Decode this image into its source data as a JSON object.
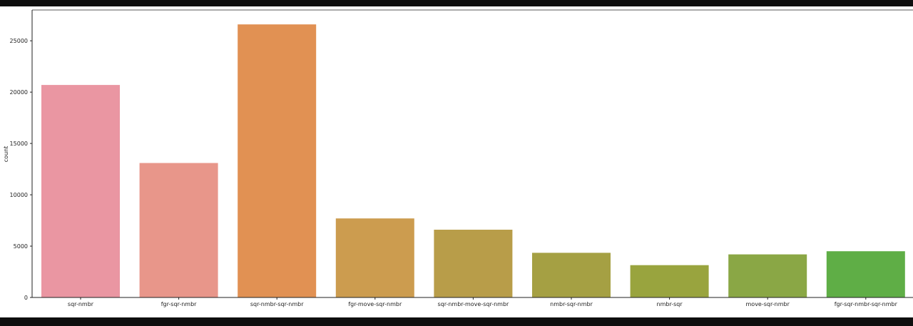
{
  "chart_data": {
    "type": "bar",
    "categories": [
      "sqr-nmbr",
      "fgr-sqr-nmbr",
      "sqr-nmbr-sqr-nmbr",
      "fgr-move-sqr-nmbr",
      "sqr-nmbr-move-sqr-nmbr",
      "nmbr-sqr-nmbr",
      "nmbr-sqr",
      "move-sqr-nmbr",
      "fgr-sqr-nmbr-sqr-nmbr"
    ],
    "values": [
      20700,
      13100,
      26600,
      7700,
      6600,
      4350,
      3150,
      4200,
      4500
    ],
    "colors": [
      "#ea96a2",
      "#e8968a",
      "#e19153",
      "#cc9c4f",
      "#b89d49",
      "#a5a043",
      "#99a43e",
      "#8aa745",
      "#5fae46"
    ],
    "ylabel": "count",
    "xlabel": "",
    "ylim": [
      0,
      28000
    ],
    "yticks": [
      0,
      5000,
      10000,
      15000,
      20000,
      25000
    ],
    "grid": false
  }
}
